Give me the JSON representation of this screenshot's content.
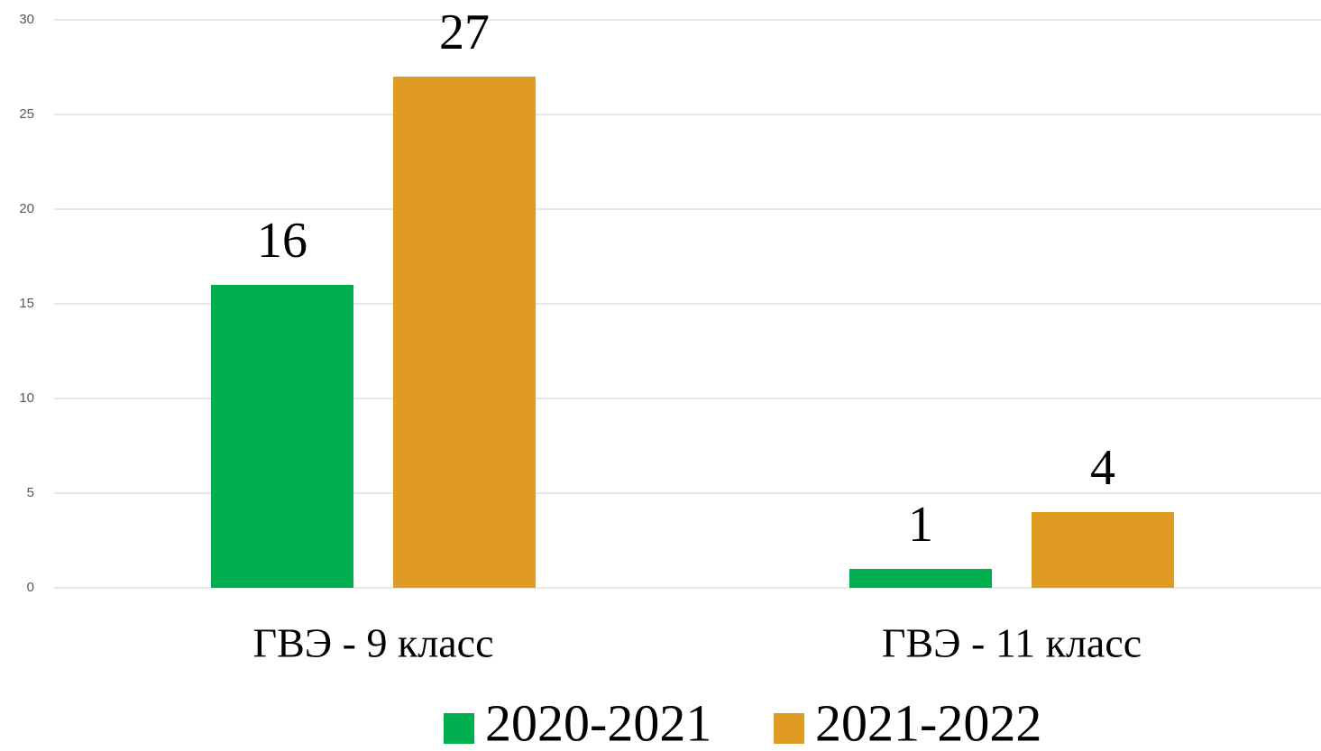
{
  "chart_data": {
    "type": "bar",
    "categories": [
      "ГВЭ - 9 класс",
      "ГВЭ - 11 класс"
    ],
    "series": [
      {
        "name": "2020-2021",
        "color": "#00b050",
        "values": [
          16,
          1
        ]
      },
      {
        "name": "2021-2022",
        "color": "#e09c22",
        "values": [
          27,
          4
        ]
      }
    ],
    "ylim": [
      0,
      30
    ],
    "yticks": [
      0,
      5,
      10,
      15,
      20,
      25,
      30
    ],
    "grid": true,
    "legend": "bottom"
  }
}
